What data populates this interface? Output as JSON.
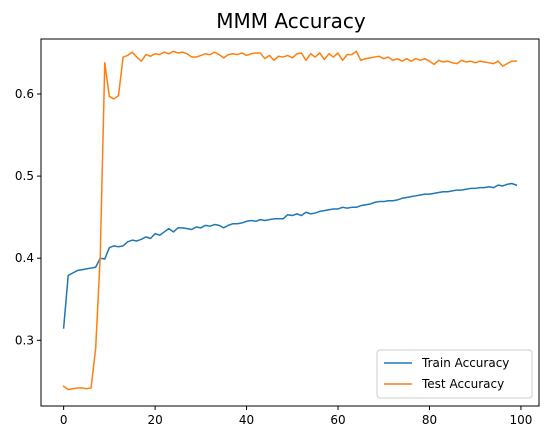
{
  "chart_data": {
    "type": "line",
    "title": "MMM Accuracy",
    "xlabel": "",
    "ylabel": "",
    "xlim": [
      -4.95,
      103.95
    ],
    "ylim": [
      0.22,
      0.667
    ],
    "x_ticks": [
      0,
      20,
      40,
      60,
      80,
      100
    ],
    "y_ticks": [
      0.3,
      0.4,
      0.5,
      0.6
    ],
    "x_tick_labels": [
      "0",
      "20",
      "40",
      "60",
      "80",
      "100"
    ],
    "y_tick_labels": [
      "0.3",
      "0.4",
      "0.5",
      "0.6"
    ],
    "grid": false,
    "legend_position": "lower right",
    "series": [
      {
        "name": "Train Accuracy",
        "color": "#1f77b4",
        "values": [
          0.315,
          0.379,
          0.382,
          0.385,
          0.386,
          0.387,
          0.388,
          0.389,
          0.4,
          0.399,
          0.413,
          0.415,
          0.414,
          0.415,
          0.42,
          0.422,
          0.421,
          0.423,
          0.426,
          0.424,
          0.43,
          0.428,
          0.432,
          0.436,
          0.432,
          0.437,
          0.437,
          0.436,
          0.435,
          0.438,
          0.437,
          0.44,
          0.439,
          0.441,
          0.44,
          0.437,
          0.44,
          0.442,
          0.442,
          0.443,
          0.445,
          0.446,
          0.445,
          0.447,
          0.446,
          0.447,
          0.448,
          0.448,
          0.448,
          0.453,
          0.452,
          0.454,
          0.452,
          0.456,
          0.454,
          0.455,
          0.457,
          0.458,
          0.459,
          0.46,
          0.46,
          0.462,
          0.461,
          0.462,
          0.462,
          0.464,
          0.465,
          0.466,
          0.468,
          0.469,
          0.469,
          0.47,
          0.47,
          0.471,
          0.473,
          0.474,
          0.475,
          0.476,
          0.477,
          0.478,
          0.478,
          0.479,
          0.48,
          0.481,
          0.481,
          0.482,
          0.483,
          0.483,
          0.484,
          0.485,
          0.485,
          0.486,
          0.486,
          0.487,
          0.486,
          0.489,
          0.488,
          0.49,
          0.491,
          0.489
        ]
      },
      {
        "name": "Test Accuracy",
        "color": "#ff7f0e",
        "values": [
          0.244,
          0.24,
          0.241,
          0.242,
          0.242,
          0.241,
          0.242,
          0.29,
          0.402,
          0.638,
          0.597,
          0.594,
          0.598,
          0.645,
          0.647,
          0.651,
          0.645,
          0.64,
          0.648,
          0.646,
          0.649,
          0.648,
          0.651,
          0.649,
          0.652,
          0.65,
          0.651,
          0.649,
          0.645,
          0.645,
          0.647,
          0.649,
          0.648,
          0.651,
          0.648,
          0.644,
          0.648,
          0.649,
          0.648,
          0.65,
          0.647,
          0.649,
          0.65,
          0.65,
          0.643,
          0.647,
          0.641,
          0.646,
          0.645,
          0.647,
          0.644,
          0.649,
          0.65,
          0.641,
          0.649,
          0.645,
          0.65,
          0.642,
          0.649,
          0.645,
          0.65,
          0.641,
          0.648,
          0.648,
          0.652,
          0.641,
          0.643,
          0.644,
          0.645,
          0.646,
          0.643,
          0.645,
          0.641,
          0.643,
          0.64,
          0.643,
          0.64,
          0.643,
          0.641,
          0.643,
          0.64,
          0.636,
          0.641,
          0.639,
          0.64,
          0.638,
          0.637,
          0.641,
          0.639,
          0.64,
          0.638,
          0.64,
          0.639,
          0.638,
          0.637,
          0.64,
          0.634,
          0.637,
          0.64,
          0.64
        ]
      }
    ]
  }
}
